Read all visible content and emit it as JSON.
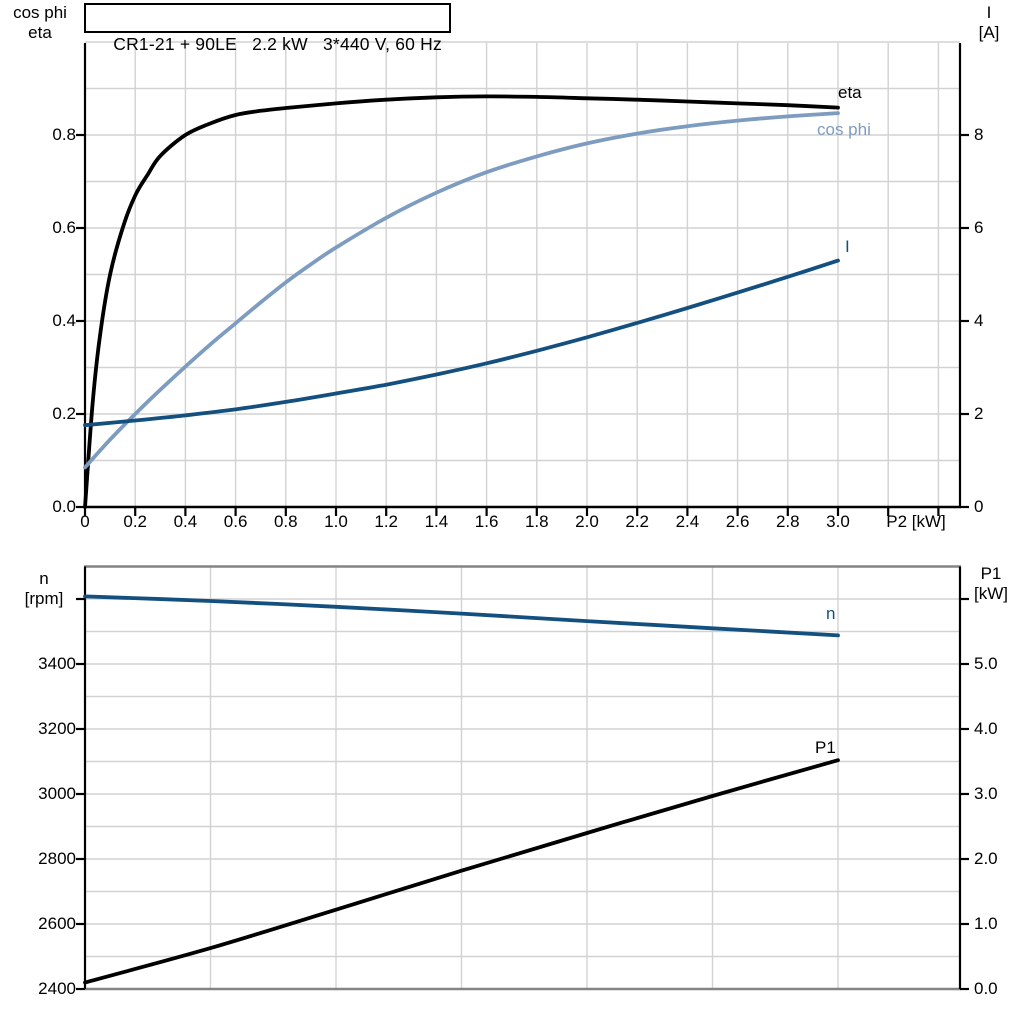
{
  "ui": {
    "title": "CR1-21 + 90LE   2.2 kW   3*440 V, 60 Hz",
    "axis_titles": {
      "top_left": [
        "cos phi",
        "eta"
      ],
      "top_right": [
        "I",
        "[A]"
      ],
      "bottom_left": [
        "n",
        "[rpm]"
      ],
      "bottom_right": [
        "P1",
        "[kW]"
      ],
      "x": "P2 [kW]"
    },
    "curve_labels": {
      "eta": "eta",
      "cos_phi": "cos phi",
      "current": "I",
      "speed": "n",
      "input_power": "P1"
    },
    "colors": {
      "black": "#000000",
      "steel_blue": "#7d9cc0",
      "navy_blue": "#14507f",
      "grid": "#d2d2d2",
      "panel_border": "#848484"
    }
  },
  "chart_data": [
    {
      "type": "line",
      "panel": "top",
      "title": "CR1-21 + 90LE   2.2 kW   3*440 V, 60 Hz",
      "xlabel": "P2 [kW]",
      "x_range": [
        0,
        3.48
      ],
      "grid": true,
      "x_ticks": {
        "values": [
          0,
          0.2,
          0.4,
          0.6,
          0.8,
          1.0,
          1.2,
          1.4,
          1.6,
          1.8,
          2.0,
          2.2,
          2.4,
          2.6,
          2.8,
          3.0
        ],
        "labels": [
          "0",
          "0.2",
          "0.4",
          "0.6",
          "0.8",
          "1.0",
          "1.2",
          "1.4",
          "1.6",
          "1.8",
          "2.0",
          "2.2",
          "2.4",
          "2.6",
          "2.8",
          "3.0"
        ],
        "unlabeled": [
          3.2,
          3.4
        ]
      },
      "left_axis": {
        "label": "cos phi / eta",
        "range": [
          0,
          1.0
        ],
        "tick_values": [
          0,
          0.2,
          0.4,
          0.6,
          0.8
        ],
        "tick_labels": [
          "0.0",
          "0.2",
          "0.4",
          "0.6",
          "0.8"
        ],
        "grid_step": 0.1
      },
      "right_axis": {
        "label": "I [A]",
        "range": [
          0,
          10
        ],
        "tick_values": [
          0,
          2,
          4,
          6,
          8
        ],
        "tick_labels": [
          "0",
          "2",
          "4",
          "6",
          "8"
        ]
      },
      "series": [
        {
          "name": "eta",
          "axis": "left",
          "color": "#000000",
          "x": [
            0,
            0.03,
            0.06,
            0.1,
            0.15,
            0.2,
            0.25,
            0.3,
            0.4,
            0.5,
            0.6,
            0.7,
            0.8,
            1.0,
            1.2,
            1.4,
            1.6,
            1.8,
            2.0,
            2.2,
            2.4,
            2.6,
            2.8,
            3.0
          ],
          "y": [
            0,
            0.22,
            0.37,
            0.5,
            0.6,
            0.67,
            0.715,
            0.755,
            0.8,
            0.825,
            0.843,
            0.852,
            0.858,
            0.868,
            0.876,
            0.881,
            0.883,
            0.882,
            0.879,
            0.876,
            0.872,
            0.868,
            0.864,
            0.859
          ]
        },
        {
          "name": "cos phi",
          "axis": "left",
          "color": "#7d9cc0",
          "x": [
            0,
            0.1,
            0.2,
            0.3,
            0.4,
            0.5,
            0.6,
            0.7,
            0.8,
            0.9,
            1.0,
            1.2,
            1.4,
            1.6,
            1.8,
            2.0,
            2.2,
            2.4,
            2.6,
            2.8,
            3.0
          ],
          "y": [
            0.085,
            0.145,
            0.2,
            0.252,
            0.302,
            0.35,
            0.395,
            0.44,
            0.483,
            0.522,
            0.558,
            0.622,
            0.676,
            0.72,
            0.754,
            0.782,
            0.803,
            0.819,
            0.831,
            0.84,
            0.847
          ]
        },
        {
          "name": "I",
          "axis": "right",
          "color": "#14507f",
          "x": [
            0,
            0.2,
            0.4,
            0.6,
            0.8,
            1.0,
            1.2,
            1.4,
            1.6,
            1.8,
            2.0,
            2.2,
            2.4,
            2.6,
            2.8,
            3.0
          ],
          "y": [
            1.76,
            1.86,
            1.97,
            2.1,
            2.26,
            2.44,
            2.63,
            2.85,
            3.09,
            3.36,
            3.65,
            3.96,
            4.28,
            4.61,
            4.95,
            5.3
          ]
        }
      ]
    },
    {
      "type": "line",
      "panel": "bottom",
      "x_range": [
        0,
        3.48
      ],
      "grid": true,
      "x_grid_step": 0.5,
      "left_axis": {
        "label": "n [rpm]",
        "range": [
          2400,
          3700
        ],
        "tick_values": [
          2400,
          2600,
          2800,
          3000,
          3200,
          3400
        ],
        "tick_labels": [
          "2400",
          "2600",
          "2800",
          "3000",
          "3200",
          "3400"
        ],
        "unlabeled_tick": 3600,
        "grid_step": 100
      },
      "right_axis": {
        "label": "P1 [kW]",
        "range": [
          0,
          6.5
        ],
        "tick_values": [
          0,
          1,
          2,
          3,
          4,
          5
        ],
        "tick_labels": [
          "0.0",
          "1.0",
          "2.0",
          "3.0",
          "4.0",
          "5.0"
        ],
        "unlabeled_tick": 6
      },
      "series": [
        {
          "name": "n",
          "axis": "left",
          "color": "#14507f",
          "x": [
            0,
            0.5,
            1.0,
            1.5,
            2.0,
            2.5,
            3.0
          ],
          "y": [
            3608,
            3594,
            3576,
            3555,
            3532,
            3510,
            3488
          ]
        },
        {
          "name": "P1",
          "axis": "right",
          "color": "#000000",
          "x": [
            0,
            0.5,
            1.0,
            1.5,
            2.0,
            2.5,
            3.0
          ],
          "y": [
            0.1,
            0.63,
            1.22,
            1.82,
            2.4,
            2.97,
            3.52
          ]
        }
      ]
    }
  ]
}
